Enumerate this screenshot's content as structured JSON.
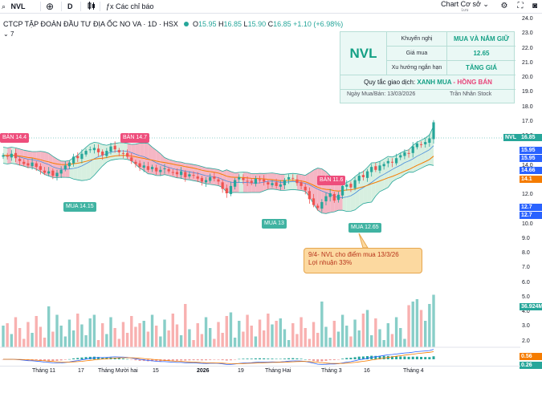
{
  "toolbar": {
    "symbol": "NVL",
    "interval": "D",
    "indicators_label": "Các chỉ báo",
    "layout_name": "Chart Cơ sở",
    "layout_sub": "Lưu"
  },
  "legend": {
    "title": "CTCP TẬP ĐOÀN ĐẦU TƯ ĐỊA ỐC NO VA · 1D · HSX",
    "o_label": "O",
    "o_value": "15.95",
    "h_label": "H",
    "h_value": "16.85",
    "l_label": "L",
    "l_value": "15.90",
    "c_label": "C",
    "c_value": "16.85",
    "change": "+1.10 (+6.98%)",
    "collapsed_count": "7"
  },
  "info_box": {
    "ticker": "NVL",
    "rows": [
      {
        "label": "Khuyến nghị",
        "value": "MUA VÀ NẮM GIỮ"
      },
      {
        "label": "Giá mua",
        "value": "12.65"
      },
      {
        "label": "Xu hướng ngắn hạn",
        "value": "TĂNG GIÁ"
      }
    ],
    "rule_prefix": "Quy tắc giao dịch:",
    "rule_buy": "XANH MUA",
    "rule_sep": " - ",
    "rule_sell": "HỒNG BÁN",
    "date": "Ngày Mua/Bán: 13/03/2026",
    "author": "Trần Nhân Stock"
  },
  "note": {
    "line1": "9/4- NVL cho điểm mua 13/3/26",
    "line2": "Lợi nhuận 33%"
  },
  "signals": [
    {
      "type": "sell",
      "text": "BÁN 14.4"
    },
    {
      "type": "buy",
      "text": "MUA 14.15"
    },
    {
      "type": "sell",
      "text": "BÁN 14.7"
    },
    {
      "type": "buy",
      "text": "MUA 13"
    },
    {
      "type": "sell",
      "text": "BÁN 11.6"
    },
    {
      "type": "buy",
      "text": "MUA 12.65"
    }
  ],
  "price_axis": {
    "ticks": [
      "24.0",
      "23.0",
      "22.0",
      "21.0",
      "20.0",
      "19.0",
      "18.0",
      "17.0",
      "16.0",
      "15.0",
      "14.0",
      "13.0",
      "12.0",
      "11.0",
      "10.0",
      "9.0",
      "8.0",
      "7.0",
      "6.0",
      "5.0",
      "4.0",
      "3.0",
      "2.0"
    ],
    "badges": {
      "symbol": "NVL",
      "last": "16.85",
      "upper_band": "15.95",
      "mid_band_1": "15.95",
      "mid_band_2": "14.66",
      "ma": "14.1",
      "lower_band_1": "12.7",
      "lower_band_2": "12.7",
      "volume": "36.924M",
      "macd": "0.56",
      "signal": "0.26"
    }
  },
  "time_axis": {
    "labels": [
      "Tháng 11",
      "17",
      "Tháng Mười hai",
      "15",
      "2026",
      "19",
      "Tháng Hai",
      "Tháng 3",
      "16",
      "Tháng 4"
    ]
  },
  "colors": {
    "up": "#26a69a",
    "down": "#ef5350",
    "band_up_fill": "#d7efe0",
    "band_down_fill": "#f5b6c4",
    "ma": "#f57c00",
    "band_line": "#4a8ddb",
    "accent": "#14a085",
    "pink": "#ee4e7c"
  },
  "chart_data": {
    "type": "candlestick",
    "title": "CTCP TẬP ĐOÀN ĐẦU TƯ ĐỊA ỐC NO VA · 1D · HSX",
    "ylim": [
      2.0,
      24.0
    ],
    "closes": [
      14.6,
      14.5,
      14.7,
      14.4,
      14.2,
      14.0,
      13.9,
      14.1,
      13.8,
      13.6,
      13.4,
      13.5,
      13.2,
      13.4,
      13.6,
      13.9,
      14.1,
      14.5,
      14.4,
      14.7,
      14.9,
      15.0,
      15.1,
      14.8,
      14.6,
      14.9,
      15.2,
      15.0,
      14.8,
      14.7,
      14.5,
      14.2,
      14.0,
      13.8,
      13.9,
      13.6,
      13.8,
      13.5,
      13.6,
      13.7,
      13.5,
      13.4,
      13.3,
      13.5,
      13.1,
      13.3,
      13.2,
      13.0,
      12.8,
      12.9,
      13.1,
      13.0,
      12.8,
      12.3,
      12.0,
      12.5,
      12.9,
      13.1,
      12.9,
      12.8,
      12.7,
      13.0,
      12.9,
      12.8,
      12.6,
      12.7,
      12.5,
      12.6,
      12.9,
      13.1,
      13.0,
      12.7,
      12.5,
      12.2,
      11.6,
      11.2,
      11.0,
      11.4,
      11.8,
      12.0,
      11.5,
      11.9,
      12.5,
      12.6,
      12.4,
      12.9,
      13.2,
      13.1,
      13.5,
      13.8,
      13.6,
      13.9,
      14.0,
      14.2,
      14.1,
      14.4,
      14.6,
      14.8,
      14.7,
      15.2,
      15.4,
      15.3,
      15.5,
      15.75,
      16.85
    ],
    "volume_max": 36.924
  }
}
